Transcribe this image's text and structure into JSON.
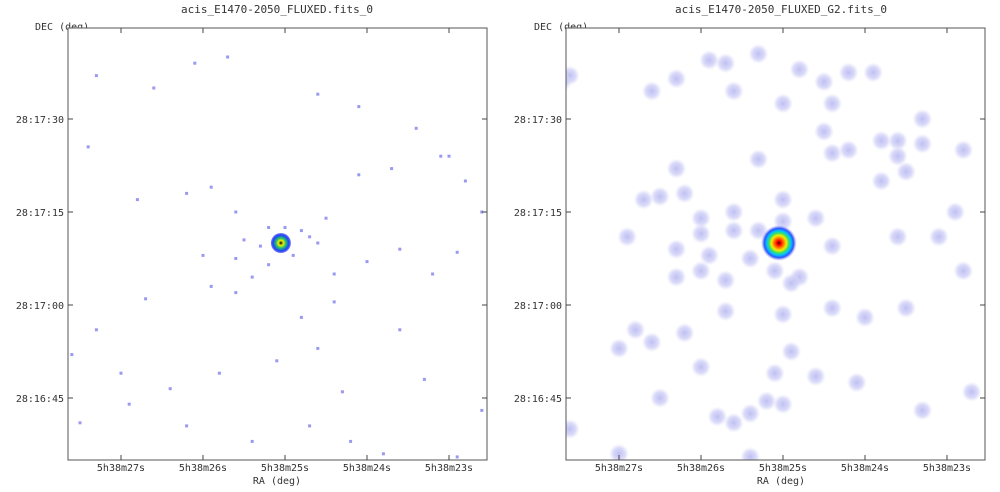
{
  "colors": {
    "background": "#ffffff",
    "frame": "#555555",
    "photon": "#9999f0",
    "glow": "#c8c8f6",
    "colormap": [
      "#b0b0f0",
      "#3050ff",
      "#00c0ff",
      "#40e060",
      "#f0f000",
      "#ff8000",
      "#ff0000",
      "#400000"
    ]
  },
  "chart_data": [
    {
      "type": "heatmap",
      "title": "acis_E1470-2050_FLUXED.fits_0",
      "xlabel": "RA (deg)",
      "ylabel": "DEC (deg)",
      "x_ticks": [
        "5h38m27s",
        "5h38m26s",
        "5h38m25s",
        "5h38m24s",
        "5h38m23s"
      ],
      "y_ticks": [
        "28:17:30",
        "28:17:15",
        "28:17:00",
        "28:16:45"
      ],
      "smoothed": false,
      "source": {
        "ra_s": 25.05,
        "dec_s": 10.0,
        "peak": 1.0
      },
      "photons": [
        [
          27.7,
          38.5
        ],
        [
          27.3,
          37.0
        ],
        [
          26.6,
          35.0
        ],
        [
          26.1,
          39.0
        ],
        [
          25.7,
          40.0
        ],
        [
          24.6,
          34.0
        ],
        [
          24.1,
          32.0
        ],
        [
          23.4,
          28.5
        ],
        [
          23.0,
          24.0
        ],
        [
          22.5,
          18.0
        ],
        [
          28.3,
          29.0
        ],
        [
          28.1,
          27.0
        ],
        [
          27.4,
          25.5
        ],
        [
          26.8,
          17.0
        ],
        [
          26.2,
          18.0
        ],
        [
          25.9,
          19.0
        ],
        [
          25.6,
          15.0
        ],
        [
          25.0,
          12.5
        ],
        [
          24.8,
          12.0
        ],
        [
          24.5,
          14.0
        ],
        [
          24.1,
          21.0
        ],
        [
          23.7,
          22.0
        ],
        [
          23.1,
          24.0
        ],
        [
          22.8,
          20.0
        ],
        [
          22.6,
          15.0
        ],
        [
          28.5,
          6.5
        ],
        [
          27.9,
          0.0
        ],
        [
          27.3,
          -4.0
        ],
        [
          26.7,
          1.0
        ],
        [
          26.0,
          8.0
        ],
        [
          25.6,
          2.0
        ],
        [
          25.2,
          6.5
        ],
        [
          24.8,
          -2.0
        ],
        [
          24.4,
          0.5
        ],
        [
          24.0,
          7.0
        ],
        [
          23.6,
          9.0
        ],
        [
          23.2,
          5.0
        ],
        [
          22.9,
          8.5
        ],
        [
          22.3,
          15.0
        ],
        [
          27.6,
          -8.0
        ],
        [
          27.0,
          -11.0
        ],
        [
          26.4,
          -13.5
        ],
        [
          25.8,
          -11.0
        ],
        [
          25.1,
          -9.0
        ],
        [
          24.6,
          -7.0
        ],
        [
          24.3,
          -14.0
        ],
        [
          23.6,
          -4.0
        ],
        [
          23.3,
          -12.0
        ],
        [
          22.6,
          -17.0
        ],
        [
          22.2,
          -17.5
        ],
        [
          28.2,
          -17.5
        ],
        [
          27.5,
          -19.0
        ],
        [
          26.9,
          -16.0
        ],
        [
          26.2,
          -19.5
        ],
        [
          25.4,
          -22.0
        ],
        [
          25.0,
          -26.0
        ],
        [
          24.7,
          -19.5
        ],
        [
          24.2,
          -22.0
        ],
        [
          23.8,
          -24.0
        ],
        [
          22.9,
          -24.5
        ],
        [
          25.9,
          3.0
        ],
        [
          25.5,
          10.5
        ],
        [
          24.6,
          10.0
        ],
        [
          25.3,
          9.5
        ],
        [
          24.9,
          8.0
        ],
        [
          25.2,
          12.5
        ],
        [
          24.7,
          11.0
        ],
        [
          25.6,
          7.5
        ],
        [
          24.4,
          5.0
        ],
        [
          25.4,
          4.5
        ]
      ]
    },
    {
      "type": "heatmap",
      "title": "acis_E1470-2050_FLUXED_G2.fits_0",
      "xlabel": "RA (deg)",
      "ylabel": "DEC (deg)",
      "x_ticks": [
        "5h38m27s",
        "5h38m26s",
        "5h38m25s",
        "5h38m24s",
        "5h38m23s"
      ],
      "y_ticks": [
        "28:17:30",
        "28:17:15",
        "28:17:00",
        "28:16:45"
      ],
      "smoothed": true,
      "source": {
        "ra_s": 25.05,
        "dec_s": 10.0,
        "peak": 1.0
      },
      "photons": [
        [
          25.9,
          39.5
        ],
        [
          25.7,
          39.0
        ],
        [
          25.3,
          40.5
        ],
        [
          24.8,
          38.0
        ],
        [
          24.5,
          36.0
        ],
        [
          24.2,
          37.5
        ],
        [
          23.9,
          37.5
        ],
        [
          26.3,
          36.5
        ],
        [
          26.6,
          34.5
        ],
        [
          27.6,
          37.0
        ],
        [
          27.7,
          36.0
        ],
        [
          25.6,
          34.5
        ],
        [
          25.0,
          32.5
        ],
        [
          24.4,
          32.5
        ],
        [
          23.3,
          30.0
        ],
        [
          28.5,
          29.0
        ],
        [
          28.5,
          28.0
        ],
        [
          28.0,
          27.5
        ],
        [
          26.3,
          22.0
        ],
        [
          25.3,
          23.5
        ],
        [
          24.5,
          28.0
        ],
        [
          24.4,
          24.5
        ],
        [
          24.2,
          25.0
        ],
        [
          23.8,
          26.5
        ],
        [
          23.6,
          26.5
        ],
        [
          23.3,
          26.0
        ],
        [
          22.8,
          25.0
        ],
        [
          23.6,
          24.0
        ],
        [
          23.8,
          20.0
        ],
        [
          23.5,
          21.5
        ],
        [
          26.7,
          17.0
        ],
        [
          26.5,
          17.5
        ],
        [
          26.2,
          18.0
        ],
        [
          25.0,
          17.0
        ],
        [
          26.0,
          14.0
        ],
        [
          25.6,
          15.0
        ],
        [
          24.6,
          14.0
        ],
        [
          26.0,
          11.5
        ],
        [
          25.6,
          12.0
        ],
        [
          25.3,
          12.0
        ],
        [
          25.0,
          13.5
        ],
        [
          27.9,
          13.0
        ],
        [
          26.9,
          11.0
        ],
        [
          26.3,
          9.0
        ],
        [
          25.9,
          8.0
        ],
        [
          25.4,
          7.5
        ],
        [
          25.1,
          5.5
        ],
        [
          24.8,
          4.5
        ],
        [
          24.4,
          9.5
        ],
        [
          23.6,
          11.0
        ],
        [
          23.1,
          11.0
        ],
        [
          22.9,
          15.0
        ],
        [
          28.7,
          7.0
        ],
        [
          26.3,
          4.5
        ],
        [
          26.0,
          5.5
        ],
        [
          25.7,
          4.0
        ],
        [
          24.9,
          3.5
        ],
        [
          28.0,
          0.0
        ],
        [
          25.7,
          -1.0
        ],
        [
          25.0,
          -1.5
        ],
        [
          24.4,
          -0.5
        ],
        [
          24.0,
          -2.0
        ],
        [
          23.5,
          -0.5
        ],
        [
          22.8,
          5.5
        ],
        [
          22.4,
          5.0
        ],
        [
          26.8,
          -4.0
        ],
        [
          26.6,
          -6.0
        ],
        [
          26.2,
          -4.5
        ],
        [
          27.0,
          -7.0
        ],
        [
          26.0,
          -10.0
        ],
        [
          24.9,
          -7.5
        ],
        [
          24.6,
          -11.5
        ],
        [
          24.1,
          -12.5
        ],
        [
          22.7,
          -14.0
        ],
        [
          25.1,
          -11.0
        ],
        [
          28.9,
          -9.0
        ],
        [
          28.8,
          -8.0
        ],
        [
          28.6,
          -16.5
        ],
        [
          28.2,
          -16.5
        ],
        [
          28.3,
          -19.0
        ],
        [
          27.6,
          -20.0
        ],
        [
          26.5,
          -15.0
        ],
        [
          25.8,
          -18.0
        ],
        [
          25.6,
          -19.0
        ],
        [
          25.4,
          -17.5
        ],
        [
          25.2,
          -15.5
        ],
        [
          25.0,
          -16.0
        ],
        [
          25.4,
          -24.5
        ],
        [
          22.4,
          -17.5
        ],
        [
          22.0,
          -14.0
        ],
        [
          23.3,
          -17.0
        ],
        [
          22.3,
          -22.0
        ],
        [
          27.0,
          -24.0
        ]
      ]
    }
  ]
}
